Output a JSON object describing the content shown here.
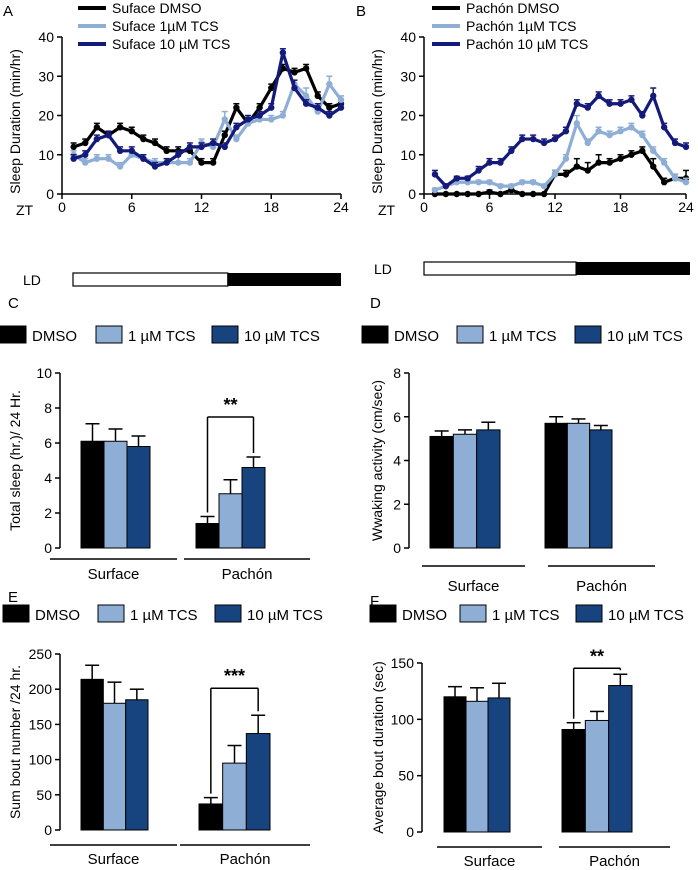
{
  "colors": {
    "black": "#000000",
    "light_blue": "#8eaed6",
    "navy": "#141a7a",
    "medium_blue": "#17437f"
  },
  "panel_letters": {
    "A": "A",
    "B": "B",
    "C": "C",
    "D": "D",
    "E": "E",
    "F": "F"
  },
  "chart_data": [
    {
      "panel": "A",
      "type": "line",
      "ylabel": "Sleep Duration (min/hr)",
      "xlabel": "ZT",
      "x": [
        1,
        2,
        3,
        4,
        5,
        6,
        7,
        8,
        9,
        10,
        11,
        12,
        13,
        14,
        15,
        16,
        17,
        18,
        19,
        20,
        21,
        22,
        23,
        24
      ],
      "xticks": [
        "0",
        "6",
        "12",
        "18",
        "24"
      ],
      "yticks": [
        "0",
        "10",
        "20",
        "30",
        "40"
      ],
      "xlim": [
        0,
        24
      ],
      "ylim": [
        0,
        40
      ],
      "series": [
        {
          "name": "Suface DMSO",
          "color": "#000000",
          "values": [
            12,
            13,
            17,
            15,
            17,
            16,
            14,
            13,
            11,
            11,
            11,
            8,
            8,
            15,
            22,
            18,
            22,
            27,
            32,
            31,
            32,
            25,
            22,
            23
          ],
          "errors": [
            1,
            1,
            1,
            1,
            1,
            1,
            1,
            1,
            1,
            1,
            1,
            1,
            1,
            1,
            1,
            1,
            1,
            1,
            1,
            1,
            1,
            1,
            1,
            1
          ]
        },
        {
          "name": "Suface 1µM TCS",
          "color": "#8eaed6",
          "values": [
            10,
            8,
            9,
            9,
            7,
            10,
            9,
            8,
            8,
            8,
            8,
            13,
            12,
            19,
            14,
            18,
            19,
            19,
            20,
            28,
            25,
            21,
            28,
            24
          ],
          "errors": [
            1,
            1,
            1,
            1,
            1,
            1,
            1,
            1,
            1,
            2,
            1,
            1,
            1,
            2,
            1,
            1,
            1,
            1,
            1,
            1,
            2,
            1,
            2,
            1
          ]
        },
        {
          "name": "Suface 10 µM TCS",
          "color": "#141a7a",
          "values": [
            9,
            10,
            14,
            15,
            11,
            11,
            9,
            7,
            8,
            10,
            12,
            12,
            13,
            12,
            17,
            19,
            20,
            22,
            36,
            27,
            23,
            22,
            20,
            22
          ],
          "errors": [
            1,
            1,
            1,
            1,
            1,
            1,
            1,
            1,
            1,
            1,
            1,
            1,
            1,
            1,
            1,
            1,
            1,
            1,
            1,
            2,
            1,
            1,
            1,
            1
          ]
        }
      ],
      "ld_label": "LD"
    },
    {
      "panel": "B",
      "type": "line",
      "ylabel": "Sleep Duration (min/hr)",
      "xlabel": "ZT",
      "x": [
        1,
        2,
        3,
        4,
        5,
        6,
        7,
        8,
        9,
        10,
        11,
        12,
        13,
        14,
        15,
        16,
        17,
        18,
        19,
        20,
        21,
        22,
        23,
        24
      ],
      "xticks": [
        "0",
        "6",
        "12",
        "18",
        "24"
      ],
      "yticks": [
        "0",
        "10",
        "20",
        "30",
        "40"
      ],
      "xlim": [
        0,
        24
      ],
      "ylim": [
        0,
        40
      ],
      "series": [
        {
          "name": "Pachón DMSO",
          "color": "#000000",
          "values": [
            0,
            0,
            0,
            0,
            0,
            0.5,
            0,
            1,
            0,
            0,
            0,
            5,
            5,
            7,
            6,
            8,
            8,
            9,
            10,
            11,
            7,
            3,
            4,
            4
          ],
          "errors": [
            0,
            0,
            0,
            0,
            0,
            0.5,
            0,
            1,
            0,
            0,
            0,
            1,
            1,
            2,
            2,
            2,
            1,
            1,
            1,
            1,
            2,
            1,
            1,
            2
          ]
        },
        {
          "name": "Pachón 1µM TCS",
          "color": "#8eaed6",
          "values": [
            1,
            2,
            3,
            3,
            3,
            3,
            2,
            2,
            3,
            3,
            2,
            5,
            9,
            18,
            13,
            16,
            15,
            16,
            17,
            15,
            11,
            8,
            4,
            3
          ],
          "errors": [
            0.5,
            0.5,
            0.5,
            0.5,
            0.5,
            0.5,
            0.5,
            0.5,
            0.5,
            0.5,
            0.5,
            1,
            1,
            2,
            1,
            1,
            1,
            1,
            1,
            1,
            1,
            1,
            1,
            1
          ]
        },
        {
          "name": "Pachón 10 µM TCS",
          "color": "#141a7a",
          "values": [
            5,
            2,
            4,
            4,
            6,
            8,
            8,
            11,
            14,
            14,
            13,
            14,
            16,
            23,
            22,
            25,
            23,
            23,
            24,
            20,
            25,
            17,
            13,
            12
          ],
          "errors": [
            1,
            0.5,
            0.5,
            0.5,
            1,
            1,
            1,
            1,
            1,
            1,
            1,
            1,
            1,
            1,
            1,
            1,
            1,
            1,
            1,
            1,
            2,
            1,
            1,
            1
          ]
        }
      ],
      "ld_label": "LD"
    },
    {
      "panel": "C",
      "type": "bar",
      "ylabel": "Total sleep (hr.)/ 24  Hr.",
      "categories": [
        "Surface",
        "Pachón"
      ],
      "legend": [
        "DMSO",
        "1 µM TCS",
        "10 µM TCS"
      ],
      "yticks": [
        "0",
        "2",
        "4",
        "6",
        "8",
        "10"
      ],
      "ylim": [
        0,
        10
      ],
      "series": [
        {
          "name": "DMSO",
          "color": "#000000",
          "values": [
            6.1,
            1.4
          ],
          "errors": [
            1.0,
            0.4
          ]
        },
        {
          "name": "1 µM TCS",
          "color": "#8eaed6",
          "values": [
            6.1,
            3.1
          ],
          "errors": [
            0.7,
            0.8
          ]
        },
        {
          "name": "10 µM TCS",
          "color": "#17437f",
          "values": [
            5.8,
            4.6
          ],
          "errors": [
            0.6,
            0.6
          ]
        }
      ],
      "significance": "**"
    },
    {
      "panel": "D",
      "type": "bar",
      "ylabel": "Wwaking activity (cm/sec)",
      "categories": [
        "Surface",
        "Pachón"
      ],
      "legend": [
        "DMSO",
        "1 µM TCS",
        "10 µM TCS"
      ],
      "yticks": [
        "0",
        "2",
        "4",
        "6",
        "8"
      ],
      "ylim": [
        0,
        8
      ],
      "series": [
        {
          "name": "DMSO",
          "color": "#000000",
          "values": [
            5.1,
            5.7
          ],
          "errors": [
            0.25,
            0.3
          ]
        },
        {
          "name": "1 µM TCS",
          "color": "#8eaed6",
          "values": [
            5.2,
            5.7
          ],
          "errors": [
            0.2,
            0.2
          ]
        },
        {
          "name": "10 µM TCS",
          "color": "#17437f",
          "values": [
            5.4,
            5.4
          ],
          "errors": [
            0.35,
            0.2
          ]
        }
      ],
      "significance": ""
    },
    {
      "panel": "E",
      "type": "bar",
      "ylabel": "Sum bout number /24 hr.",
      "categories": [
        "Surface",
        "Pachón"
      ],
      "legend": [
        "DMSO",
        "1 µM TCS",
        "10 µM TCS"
      ],
      "yticks": [
        "0",
        "50",
        "100",
        "150",
        "200",
        "250"
      ],
      "ylim": [
        0,
        250
      ],
      "series": [
        {
          "name": "DMSO",
          "color": "#000000",
          "values": [
            214,
            37
          ],
          "errors": [
            20,
            9
          ]
        },
        {
          "name": "1 µM TCS",
          "color": "#8eaed6",
          "values": [
            180,
            95
          ],
          "errors": [
            30,
            25
          ]
        },
        {
          "name": "10 µM TCS",
          "color": "#17437f",
          "values": [
            185,
            137
          ],
          "errors": [
            15,
            26
          ]
        }
      ],
      "significance": "***"
    },
    {
      "panel": "F",
      "type": "bar",
      "ylabel": "Average bout duration (sec)",
      "categories": [
        "Surface",
        "Pachón"
      ],
      "legend": [
        "DMSO",
        "1 µM TCS",
        "10 µM TCS"
      ],
      "yticks": [
        "0",
        "50",
        "100",
        "150"
      ],
      "ylim": [
        0,
        150
      ],
      "series": [
        {
          "name": "DMSO",
          "color": "#000000",
          "values": [
            120,
            91
          ],
          "errors": [
            9,
            6
          ]
        },
        {
          "name": "1 µM TCS",
          "color": "#8eaed6",
          "values": [
            116,
            99
          ],
          "errors": [
            12,
            8
          ]
        },
        {
          "name": "10 µM TCS",
          "color": "#17437f",
          "values": [
            119,
            130
          ],
          "errors": [
            13,
            10
          ]
        }
      ],
      "significance": "**"
    }
  ]
}
